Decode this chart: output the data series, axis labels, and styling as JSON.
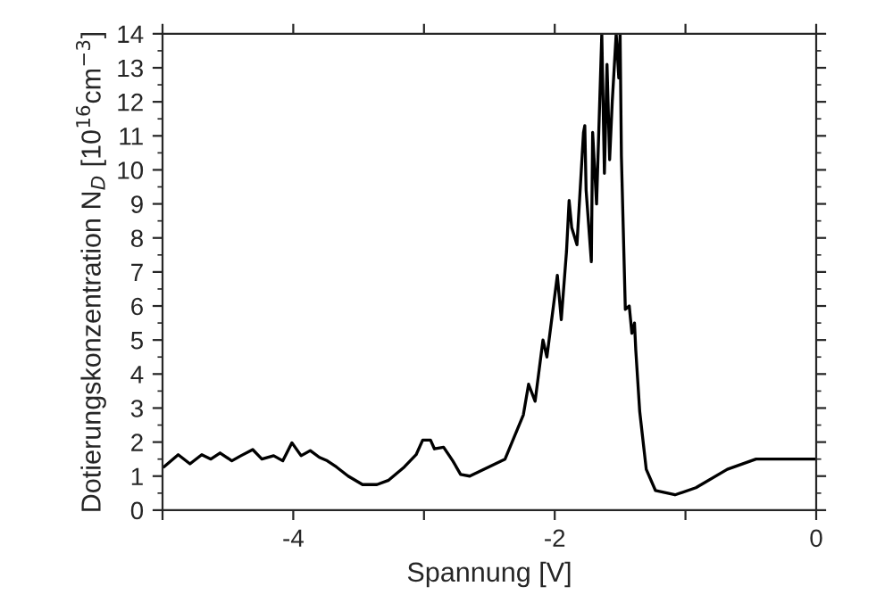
{
  "chart_data": {
    "type": "line",
    "xlabel": "Spannung [V]",
    "ylabel": "Dotierungskonzentration N$_{D}$ [10$^{16}$cm$^{−3}$]",
    "series": [
      {
        "color": "#000000",
        "x": [
          -4.99,
          -4.88,
          -4.79,
          -4.7,
          -4.63,
          -4.56,
          -4.47,
          -4.4,
          -4.31,
          -4.24,
          -4.15,
          -4.08,
          -4.01,
          -3.94,
          -3.87,
          -3.8,
          -3.74,
          -3.67,
          -3.58,
          -3.47,
          -3.36,
          -3.27,
          -3.15,
          -3.06,
          -3.01,
          -2.95,
          -2.92,
          -2.85,
          -2.78,
          -2.72,
          -2.65,
          -2.38,
          -2.24,
          -2.2,
          -2.15,
          -2.09,
          -2.06,
          -1.98,
          -1.95,
          -1.91,
          -1.89,
          -1.87,
          -1.83,
          -1.78,
          -1.77,
          -1.76,
          -1.72,
          -1.71,
          -1.68,
          -1.64,
          -1.62,
          -1.6,
          -1.58,
          -1.56,
          -1.53,
          -1.51,
          -1.5,
          -1.49,
          -1.46,
          -1.43,
          -1.41,
          -1.39,
          -1.38,
          -1.35,
          -1.3,
          -1.23,
          -1.08,
          -0.92,
          -0.68,
          -0.46,
          -0.19,
          0
        ],
        "values": [
          1.27,
          1.63,
          1.36,
          1.63,
          1.5,
          1.68,
          1.45,
          1.6,
          1.78,
          1.5,
          1.6,
          1.45,
          1.98,
          1.6,
          1.75,
          1.55,
          1.45,
          1.27,
          1.0,
          0.75,
          0.75,
          0.88,
          1.27,
          1.63,
          2.06,
          2.06,
          1.8,
          1.85,
          1.45,
          1.05,
          1.0,
          1.5,
          2.8,
          3.7,
          3.2,
          5.0,
          4.5,
          6.9,
          5.6,
          7.6,
          9.1,
          8.3,
          7.8,
          11.1,
          11.3,
          9.4,
          7.3,
          11.1,
          9.0,
          14,
          9.9,
          13.1,
          10.3,
          12.0,
          14,
          12.7,
          14,
          10.4,
          5.9,
          6.0,
          5.2,
          5.5,
          4.7,
          2.9,
          1.2,
          0.58,
          0.45,
          0.66,
          1.2,
          1.5,
          1.5,
          1.5
        ]
      }
    ],
    "xlim": [
      -5,
      0
    ],
    "ylim": [
      0,
      14
    ],
    "xticks": [
      {
        "value": -5,
        "label": null
      },
      -4,
      {
        "value": -3,
        "label": null
      },
      -2,
      {
        "value": -1,
        "label": null
      },
      0
    ],
    "yticks": [
      0,
      1,
      2,
      3,
      4,
      5,
      6,
      7,
      8,
      9,
      10,
      11,
      12,
      13,
      14
    ],
    "grid": false,
    "legend": false,
    "marker": "none",
    "line_style": "solid"
  }
}
